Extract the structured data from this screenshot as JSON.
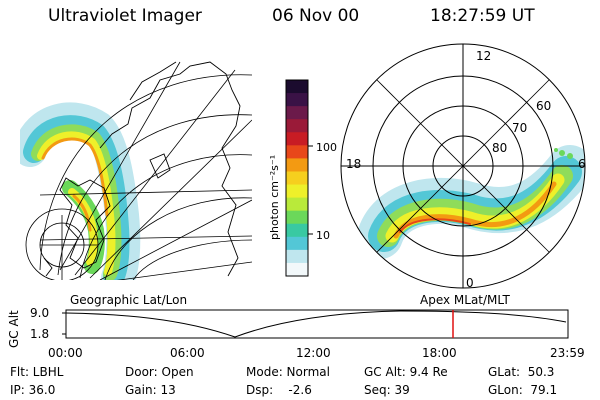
{
  "header": {
    "title": "Ultraviolet Imager",
    "date": "06 Nov 00",
    "time": "18:27:59 UT"
  },
  "colorbar": {
    "unit_label": "photon cm⁻²s⁻¹",
    "ticks": [
      "100",
      "10"
    ],
    "colors": [
      "#1b0b2e",
      "#3a1246",
      "#6b1a4a",
      "#9a1a38",
      "#c81c24",
      "#e8481a",
      "#f39a12",
      "#f6cf1e",
      "#eef02a",
      "#b9ea3a",
      "#6bd85a",
      "#39c9a2",
      "#53c7d6",
      "#bfe6ee",
      "#f2f8fa"
    ]
  },
  "left_map": {
    "label": "Geographic Lat/Lon"
  },
  "right_map": {
    "label": "Apex MLat/MLT",
    "mlt_labels": {
      "top": "12",
      "left": "18",
      "right": "6",
      "bottom": "0"
    },
    "lat_labels": [
      "60",
      "70",
      "80"
    ]
  },
  "timeline": {
    "y_axis_label": "GC Alt",
    "y_ticks": [
      "9.0",
      "1.8"
    ],
    "x_ticks": [
      "00:00",
      "06:00",
      "12:00",
      "18:00",
      "23:59"
    ],
    "marker_color": "#e01010"
  },
  "info": {
    "flt": "Flt: LBHL",
    "ip": "IP: 36.0",
    "door": "Door: Open",
    "gain": "Gain: 13",
    "mode": "Mode: Normal",
    "dsp": "Dsp:    -2.6",
    "gc_alt": "GC Alt: 9.4 Re",
    "seq": "Seq: 39",
    "glat": "GLat:  50.3",
    "glon": "GLon:  79.1"
  }
}
